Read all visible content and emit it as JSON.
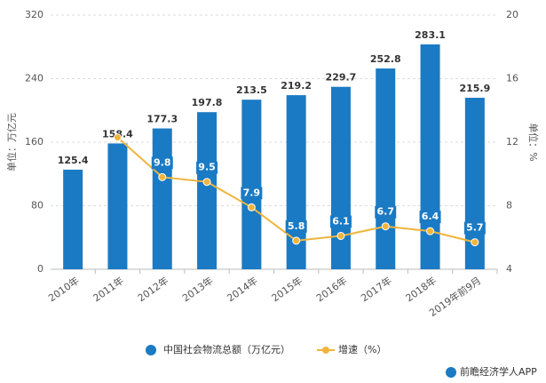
{
  "chart_data": {
    "type": "bar_line",
    "categories": [
      "2010年",
      "2011年",
      "2012年",
      "2013年",
      "2014年",
      "2015年",
      "2016年",
      "2017年",
      "2018年",
      "2019年前9月"
    ],
    "series": [
      {
        "name": "中国社会物流总额（万亿元）",
        "color": "#1a7ac4",
        "type": "bar",
        "values": [
          125.4,
          158.4,
          177.3,
          197.8,
          213.5,
          219.2,
          229.7,
          252.8,
          283.1,
          215.9
        ]
      },
      {
        "name": "增速（%）",
        "color": "#f0b43c",
        "type": "line",
        "axis": "y2",
        "values": [
          null,
          12.3,
          9.8,
          9.5,
          7.9,
          5.8,
          6.1,
          6.7,
          6.4,
          5.7
        ],
        "value_labels": [
          null,
          null,
          "9.8",
          "9.5",
          "7.9",
          "5.8",
          "6.1",
          "6.7",
          "6.4",
          "5.7"
        ]
      }
    ],
    "ylabel": "单位：万亿元",
    "y2label": "单位：%",
    "ylim": [
      0,
      320
    ],
    "yticks": [
      0,
      80,
      160,
      240,
      320
    ],
    "y2lim": [
      4,
      20
    ],
    "y2ticks": [
      4,
      8,
      12,
      16,
      20
    ],
    "grid": true,
    "legend": "bottom",
    "source": "前瞻经济学人APP"
  }
}
